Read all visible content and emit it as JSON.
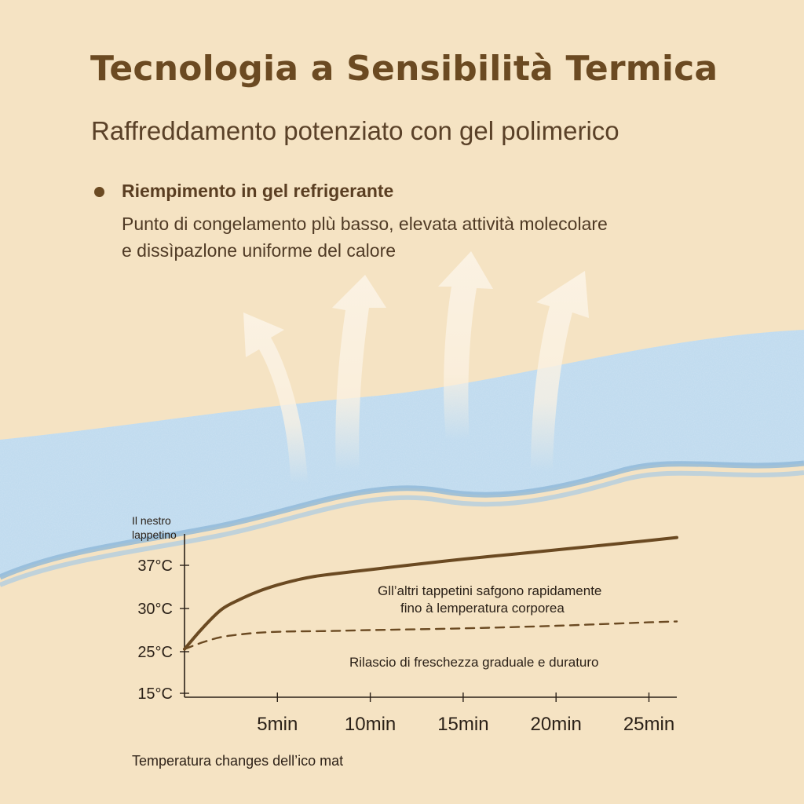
{
  "header": {
    "title": "Tecnologia a Sensibilità Termica",
    "subtitle": "Raffreddamento potenziato con gel polimerico"
  },
  "feature": {
    "heading": "Riempimento in gel refrigerante",
    "line1": "Punto di congelamento plù basso, elevata attività molecolare",
    "line2": "e dissìpazlone uniforme del calore"
  },
  "illustration": {
    "gel_color": "#bcd9ee",
    "arrow_color": "#fbf2e3",
    "arrow_count": 4
  },
  "caption": "Temperatura changes dell’ico mat",
  "chart_data": {
    "type": "line",
    "ylabel": "Il nestro lappetino",
    "xlabel": "",
    "x_ticks": [
      "5min",
      "10min",
      "15min",
      "20min",
      "25min"
    ],
    "y_ticks": [
      "15°C",
      "25°C",
      "30°C",
      "37°C"
    ],
    "xlim": [
      0,
      26.5
    ],
    "y_tick_values": [
      15,
      25,
      30,
      37
    ],
    "series": [
      {
        "style": "solid",
        "color": "#6b4a22",
        "x": [
          0,
          1,
          2,
          3,
          4,
          5,
          6,
          7,
          8,
          10,
          12,
          15,
          18,
          21,
          24,
          26.5
        ],
        "y": [
          25.3,
          27.8,
          29.9,
          31.5,
          32.8,
          33.8,
          34.6,
          35.2,
          35.6,
          36.3,
          37.0,
          38.0,
          38.9,
          39.8,
          40.7,
          41.5
        ]
      },
      {
        "style": "dashed",
        "color": "#6b4a22",
        "x": [
          0,
          1,
          2,
          3,
          4,
          5,
          6,
          8,
          10,
          15,
          20,
          25,
          26.5
        ],
        "y": [
          25.3,
          26.1,
          26.7,
          27.0,
          27.2,
          27.3,
          27.35,
          27.4,
          27.5,
          27.7,
          28.0,
          28.4,
          28.5
        ]
      }
    ],
    "annotations": [
      {
        "line1": "Gll’altri tappetini safgono rapidamente",
        "line2": "fino à lemperatura corporea"
      },
      {
        "line1": "Rilascio di freschezza graduale e duraturo"
      }
    ]
  }
}
